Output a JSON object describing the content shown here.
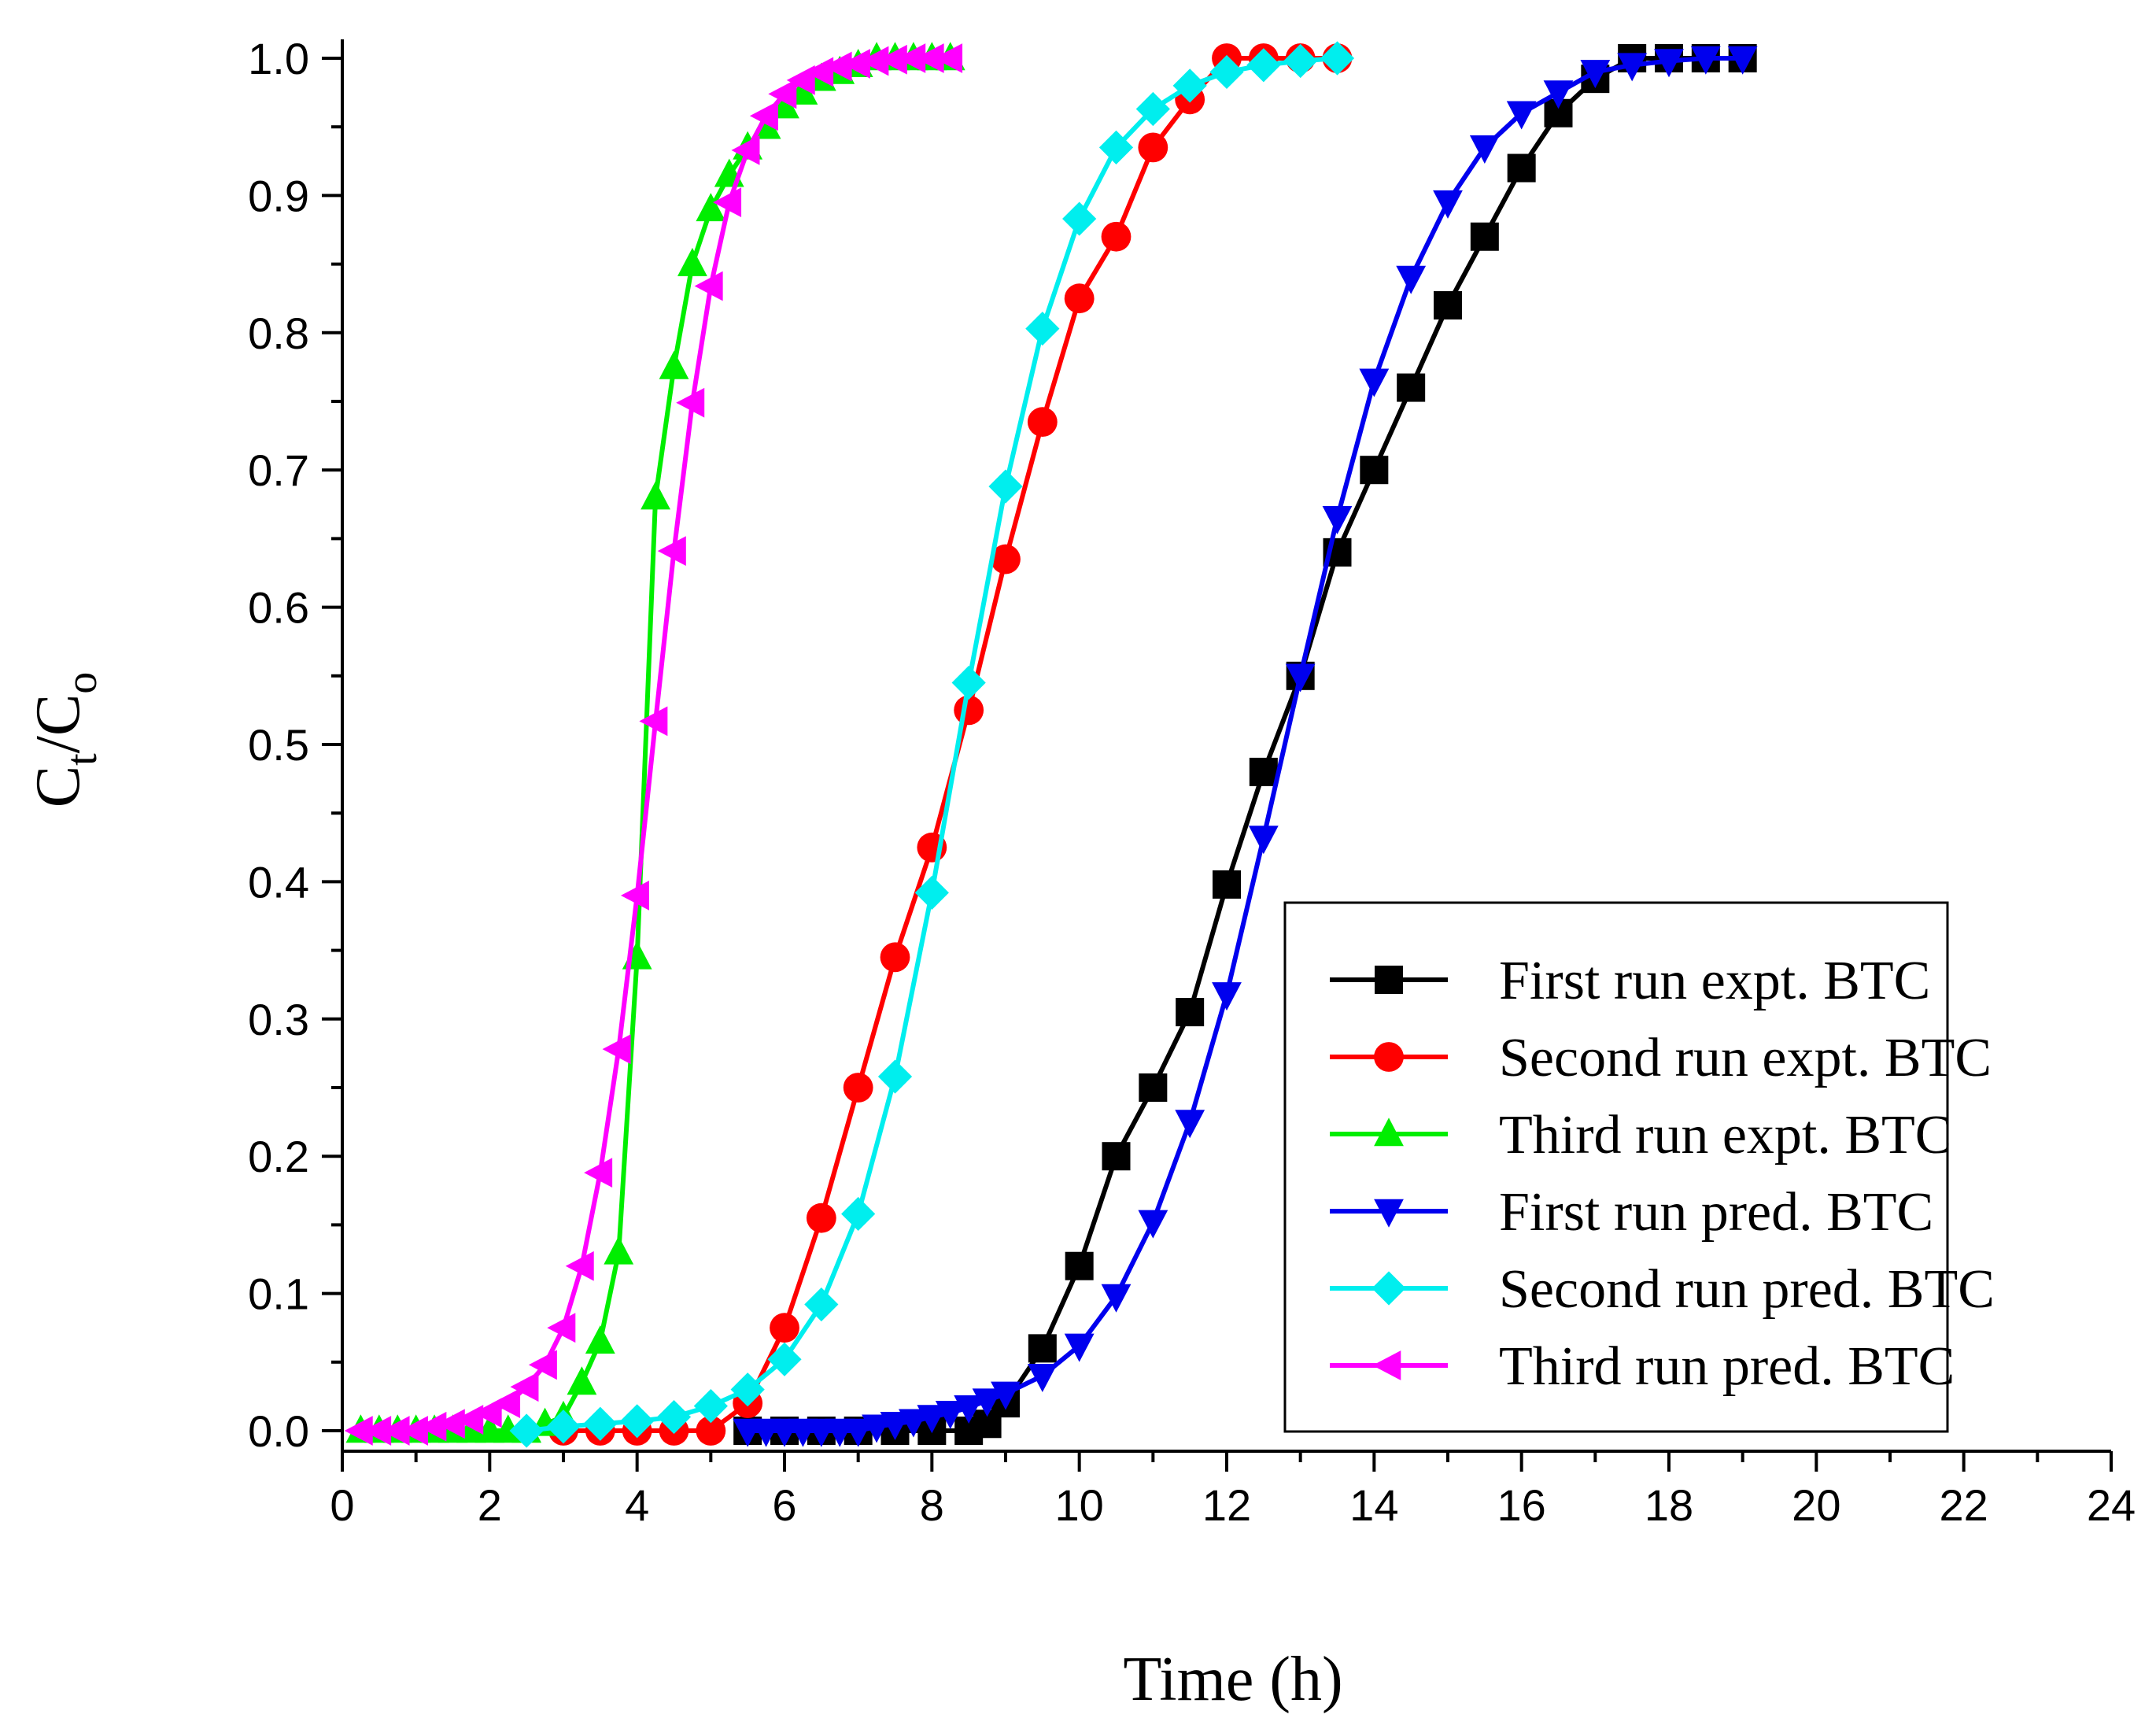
{
  "chart_data": {
    "type": "line",
    "title": "",
    "xlabel": "Time (h)",
    "ylabel": {
      "main": "C",
      "sub1": "t",
      "sep": "/C",
      "sub2": "o"
    },
    "xlim": [
      0,
      24
    ],
    "ylim": [
      0.0,
      1.0
    ],
    "xticks": [
      0,
      2,
      4,
      6,
      8,
      10,
      12,
      14,
      16,
      18,
      20,
      22,
      24
    ],
    "yticks": [
      0.0,
      0.1,
      0.2,
      0.3,
      0.4,
      0.5,
      0.6,
      0.7,
      0.8,
      0.9,
      1.0
    ],
    "ytick_labels": [
      "0.0",
      "0.1",
      "0.2",
      "0.3",
      "0.4",
      "0.5",
      "0.6",
      "0.7",
      "0.8",
      "0.9",
      "1.0"
    ],
    "grid": false,
    "legend_position": "bottom-right",
    "series": [
      {
        "name": "First run expt. BTC",
        "color": "#000000",
        "marker": "square",
        "x": [
          5.5,
          6,
          6.5,
          7,
          7.5,
          8,
          8.5,
          8.75,
          9,
          9.5,
          10,
          10.5,
          11,
          11.5,
          12,
          12.5,
          13,
          13.5,
          14,
          14.5,
          15,
          15.5,
          16,
          16.5,
          17,
          17.5,
          18,
          18.5,
          19
        ],
        "y": [
          0.0,
          0.0,
          0.0,
          0.0,
          0.0,
          0.0,
          0.0,
          0.005,
          0.02,
          0.06,
          0.12,
          0.2,
          0.25,
          0.305,
          0.398,
          0.48,
          0.55,
          0.64,
          0.7,
          0.76,
          0.82,
          0.87,
          0.92,
          0.96,
          0.985,
          1.0,
          1.0,
          1.0,
          1.0
        ]
      },
      {
        "name": "Second run expt. BTC",
        "color": "#ff0000",
        "marker": "circle",
        "x": [
          3,
          3.5,
          4,
          4.5,
          5,
          5.5,
          6,
          6.5,
          7,
          7.5,
          8,
          8.5,
          9,
          9.5,
          10,
          10.5,
          11,
          11.5,
          12,
          12.5,
          13,
          13.5
        ],
        "y": [
          0.0,
          0.0,
          0.0,
          0.0,
          0.0,
          0.02,
          0.075,
          0.155,
          0.25,
          0.345,
          0.425,
          0.525,
          0.635,
          0.735,
          0.825,
          0.87,
          0.935,
          0.97,
          1.0,
          1.0,
          1.0,
          1.0
        ]
      },
      {
        "name": "Third run expt. BTC",
        "color": "#00ee00",
        "marker": "triangle-up",
        "x": [
          0.25,
          0.5,
          0.75,
          1,
          1.25,
          1.5,
          1.75,
          2,
          2.25,
          2.5,
          2.75,
          3,
          3.25,
          3.5,
          3.75,
          4,
          4.25,
          4.5,
          4.75,
          5,
          5.25,
          5.5,
          5.75,
          6,
          6.25,
          6.5,
          6.75,
          7,
          7.25,
          7.5,
          7.75,
          8,
          8.25
        ],
        "y": [
          0.0,
          0.0,
          0.0,
          0.0,
          0.0,
          0.0,
          0.0,
          0.0,
          0.0,
          0.0,
          0.005,
          0.01,
          0.035,
          0.065,
          0.13,
          0.345,
          0.68,
          0.775,
          0.85,
          0.89,
          0.915,
          0.935,
          0.95,
          0.965,
          0.975,
          0.985,
          0.99,
          0.995,
          1.0,
          1.0,
          1.0,
          1.0,
          1.0
        ]
      },
      {
        "name": "First run pred. BTC",
        "color": "#0000ee",
        "marker": "triangle-down",
        "x": [
          5.5,
          5.75,
          6,
          6.25,
          6.5,
          6.75,
          7,
          7.25,
          7.5,
          7.75,
          8,
          8.25,
          8.5,
          8.75,
          9,
          9.5,
          10,
          10.5,
          11,
          11.5,
          12,
          12.5,
          13,
          13.5,
          14,
          14.5,
          15,
          15.5,
          16,
          16.5,
          17,
          17.5,
          18,
          18.5,
          19
        ],
        "y": [
          0.0,
          0.0,
          0.0,
          0.0,
          0.0,
          0.0,
          0.0,
          0.003,
          0.005,
          0.007,
          0.01,
          0.013,
          0.017,
          0.022,
          0.027,
          0.04,
          0.062,
          0.098,
          0.152,
          0.225,
          0.318,
          0.432,
          0.55,
          0.665,
          0.765,
          0.84,
          0.895,
          0.935,
          0.96,
          0.975,
          0.99,
          0.995,
          0.998,
          1.0,
          1.0
        ]
      },
      {
        "name": "Second run pred. BTC",
        "color": "#00eeee",
        "marker": "diamond",
        "x": [
          2.5,
          3,
          3.5,
          4,
          4.5,
          5,
          5.5,
          6,
          6.5,
          7,
          7.5,
          8,
          8.5,
          9,
          9.5,
          10,
          10.5,
          11,
          11.5,
          12,
          12.5,
          13,
          13.5
        ],
        "y": [
          0.0,
          0.003,
          0.005,
          0.007,
          0.01,
          0.018,
          0.03,
          0.052,
          0.092,
          0.158,
          0.258,
          0.392,
          0.545,
          0.688,
          0.803,
          0.883,
          0.935,
          0.963,
          0.98,
          0.99,
          0.995,
          0.998,
          1.0
        ]
      },
      {
        "name": "Third run pred. BTC",
        "color": "#ff00ff",
        "marker": "triangle-left",
        "x": [
          0.25,
          0.5,
          0.75,
          1,
          1.25,
          1.5,
          1.75,
          2,
          2.25,
          2.5,
          2.75,
          3,
          3.25,
          3.5,
          3.75,
          4,
          4.25,
          4.5,
          4.75,
          5,
          5.25,
          5.5,
          5.75,
          6,
          6.25,
          6.5,
          6.75,
          7,
          7.25,
          7.5,
          7.75,
          8,
          8.25
        ],
        "y": [
          0.0,
          0.0,
          0.0,
          0.0,
          0.003,
          0.005,
          0.008,
          0.013,
          0.02,
          0.032,
          0.048,
          0.075,
          0.12,
          0.188,
          0.278,
          0.39,
          0.517,
          0.641,
          0.749,
          0.834,
          0.895,
          0.933,
          0.958,
          0.974,
          0.984,
          0.99,
          0.994,
          0.996,
          0.998,
          0.999,
          1.0,
          1.0,
          1.0
        ]
      }
    ]
  }
}
